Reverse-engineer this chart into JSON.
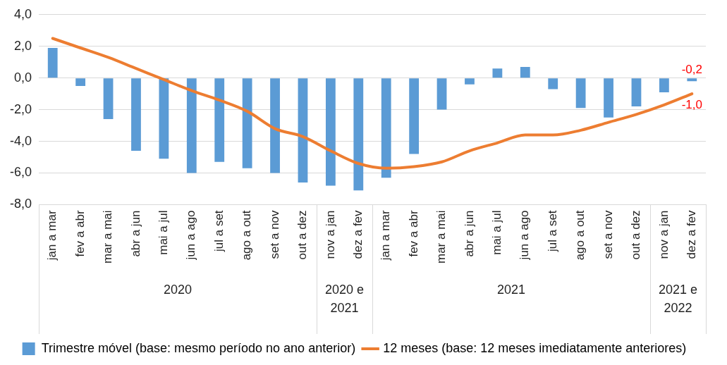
{
  "chart_data": {
    "type": "bar",
    "categories": [
      "jan a mar",
      "fev a abr",
      "mar a mai",
      "abr a jun",
      "mai a jul",
      "jun a ago",
      "jul a set",
      "ago a out",
      "set a nov",
      "out a dez",
      "nov a jan",
      "dez a fev",
      "jan a mar",
      "fev a abr",
      "mar a mai",
      "abr a jun",
      "mai a jul",
      "jun a ago",
      "jul a set",
      "ago a out",
      "set a nov",
      "out a dez",
      "nov a jan",
      "dez a fev"
    ],
    "series": [
      {
        "name": "Trimestre móvel (base: mesmo período no ano anterior)",
        "color": "#5b9bd5",
        "values": [
          1.9,
          -0.5,
          -2.6,
          -4.6,
          -5.1,
          -6.0,
          -5.3,
          -5.7,
          -6.0,
          -6.6,
          -6.8,
          -7.1,
          -6.3,
          -4.8,
          -2.0,
          -0.4,
          0.6,
          0.7,
          -0.7,
          -1.9,
          -2.5,
          -1.8,
          -0.9,
          -0.2
        ],
        "value_labels": [
          null,
          null,
          null,
          null,
          null,
          null,
          null,
          null,
          null,
          null,
          null,
          null,
          null,
          null,
          null,
          null,
          null,
          null,
          null,
          null,
          null,
          null,
          null,
          "-0,2"
        ]
      },
      {
        "name": "12 meses (base: 12 meses imediatamente anteriores)",
        "type": "line",
        "color": "#ed7d31",
        "values": [
          2.5,
          1.9,
          1.3,
          0.6,
          -0.1,
          -0.8,
          -1.4,
          -2.1,
          -3.2,
          -3.7,
          -4.6,
          -5.4,
          -5.7,
          -5.6,
          -5.3,
          -4.6,
          -4.1,
          -3.6,
          -3.6,
          -3.3,
          -2.8,
          -2.3,
          -1.7,
          -1.0
        ],
        "value_labels": [
          null,
          null,
          null,
          null,
          null,
          null,
          null,
          null,
          null,
          null,
          null,
          null,
          null,
          null,
          null,
          null,
          null,
          null,
          null,
          null,
          null,
          null,
          null,
          "-1,0"
        ]
      }
    ],
    "annotations": [
      "2020",
      "2020 e 2021",
      "2021",
      "2021 e 2022"
    ],
    "ylim": [
      -8,
      4
    ],
    "yticks": [
      {
        "value": -8,
        "label": "-8,0"
      },
      {
        "value": -6,
        "label": "-6,0"
      },
      {
        "value": -4,
        "label": "-4,0"
      },
      {
        "value": -2,
        "label": "-2,0"
      },
      {
        "value": 0,
        "label": "0,0"
      },
      {
        "value": 2,
        "label": "2,0"
      },
      {
        "value": 4,
        "label": "4,0"
      }
    ],
    "grid": "y",
    "legend": "bottom",
    "marker": "none",
    "line_style": "solid"
  }
}
